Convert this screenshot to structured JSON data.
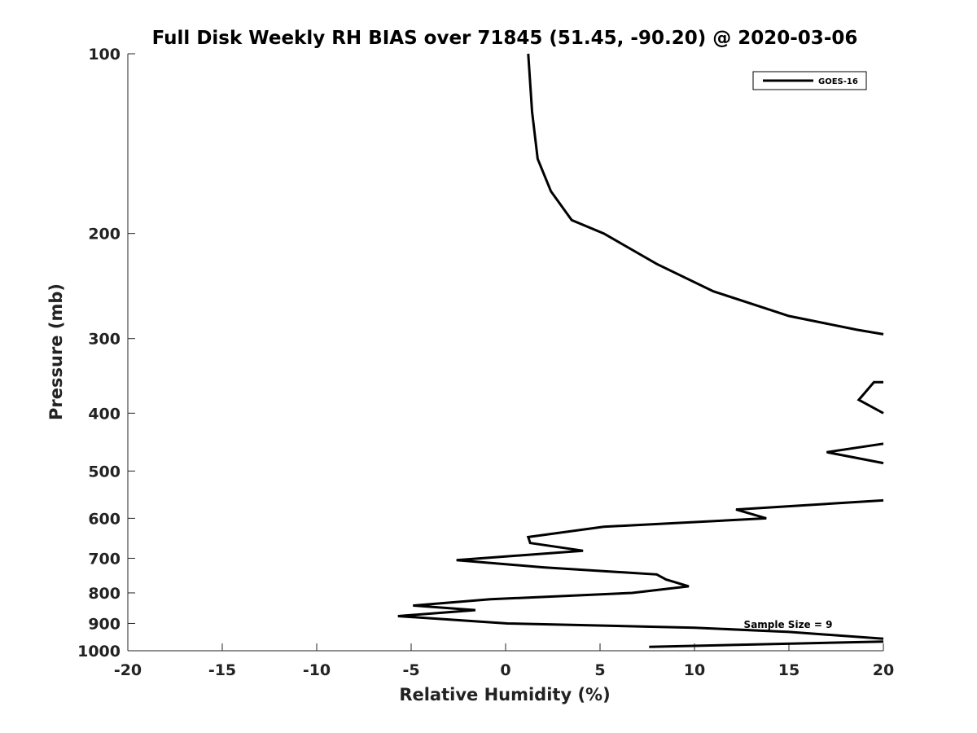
{
  "chart_data": {
    "type": "line",
    "title": "Full Disk Weekly RH BIAS over 71845 (51.45, -90.20) @ 2020-03-06",
    "xlabel": "Relative Humidity (%)",
    "ylabel": "Pressure (mb)",
    "xlim": [
      -20,
      20
    ],
    "ylim": [
      100,
      1000
    ],
    "y_scale": "log",
    "y_reversed": true,
    "xticks": [
      "-20",
      "-15",
      "-10",
      "-5",
      "0",
      "5",
      "10",
      "15",
      "20"
    ],
    "xtick_values": [
      -20,
      -15,
      -10,
      -5,
      0,
      5,
      10,
      15,
      20
    ],
    "yticks": [
      "100",
      "200",
      "300",
      "400",
      "500",
      "600",
      "700",
      "800",
      "900",
      "1000"
    ],
    "ytick_values": [
      100,
      200,
      300,
      400,
      500,
      600,
      700,
      800,
      900,
      1000
    ],
    "grid": false,
    "legend_position": "top-right",
    "annotation": "Sample Size = 9",
    "series": [
      {
        "name": "GOES-16",
        "color": "#000000",
        "segments": [
          [
            {
              "x": 1.2,
              "y": 100
            },
            {
              "x": 1.4,
              "y": 125
            },
            {
              "x": 1.7,
              "y": 150
            },
            {
              "x": 2.4,
              "y": 170
            },
            {
              "x": 3.5,
              "y": 190
            },
            {
              "x": 5.2,
              "y": 200
            },
            {
              "x": 8.0,
              "y": 225
            },
            {
              "x": 11.0,
              "y": 250
            },
            {
              "x": 15.0,
              "y": 275
            },
            {
              "x": 18.6,
              "y": 290
            },
            {
              "x": 20.0,
              "y": 295
            }
          ],
          [
            {
              "x": 20.0,
              "y": 355
            },
            {
              "x": 19.5,
              "y": 355
            },
            {
              "x": 18.7,
              "y": 380
            },
            {
              "x": 20.0,
              "y": 400
            }
          ],
          [
            {
              "x": 20.0,
              "y": 450
            },
            {
              "x": 17.0,
              "y": 465
            },
            {
              "x": 20.0,
              "y": 485
            }
          ],
          [
            {
              "x": 20.0,
              "y": 560
            },
            {
              "x": 12.2,
              "y": 580
            },
            {
              "x": 13.8,
              "y": 600
            },
            {
              "x": 5.2,
              "y": 620
            },
            {
              "x": 1.2,
              "y": 645
            },
            {
              "x": 1.3,
              "y": 660
            },
            {
              "x": 4.1,
              "y": 680
            },
            {
              "x": -2.6,
              "y": 705
            },
            {
              "x": 2.0,
              "y": 725
            },
            {
              "x": 8.0,
              "y": 745
            },
            {
              "x": 8.5,
              "y": 760
            },
            {
              "x": 9.7,
              "y": 780
            },
            {
              "x": 6.7,
              "y": 800
            },
            {
              "x": -0.8,
              "y": 820
            },
            {
              "x": -4.9,
              "y": 840
            },
            {
              "x": -1.6,
              "y": 855
            },
            {
              "x": -5.7,
              "y": 875
            },
            {
              "x": 0.1,
              "y": 900
            },
            {
              "x": 10.0,
              "y": 915
            },
            {
              "x": 15.0,
              "y": 930
            },
            {
              "x": 20.0,
              "y": 955
            }
          ],
          [
            {
              "x": 20.0,
              "y": 965
            },
            {
              "x": 7.6,
              "y": 985
            }
          ]
        ]
      }
    ]
  }
}
